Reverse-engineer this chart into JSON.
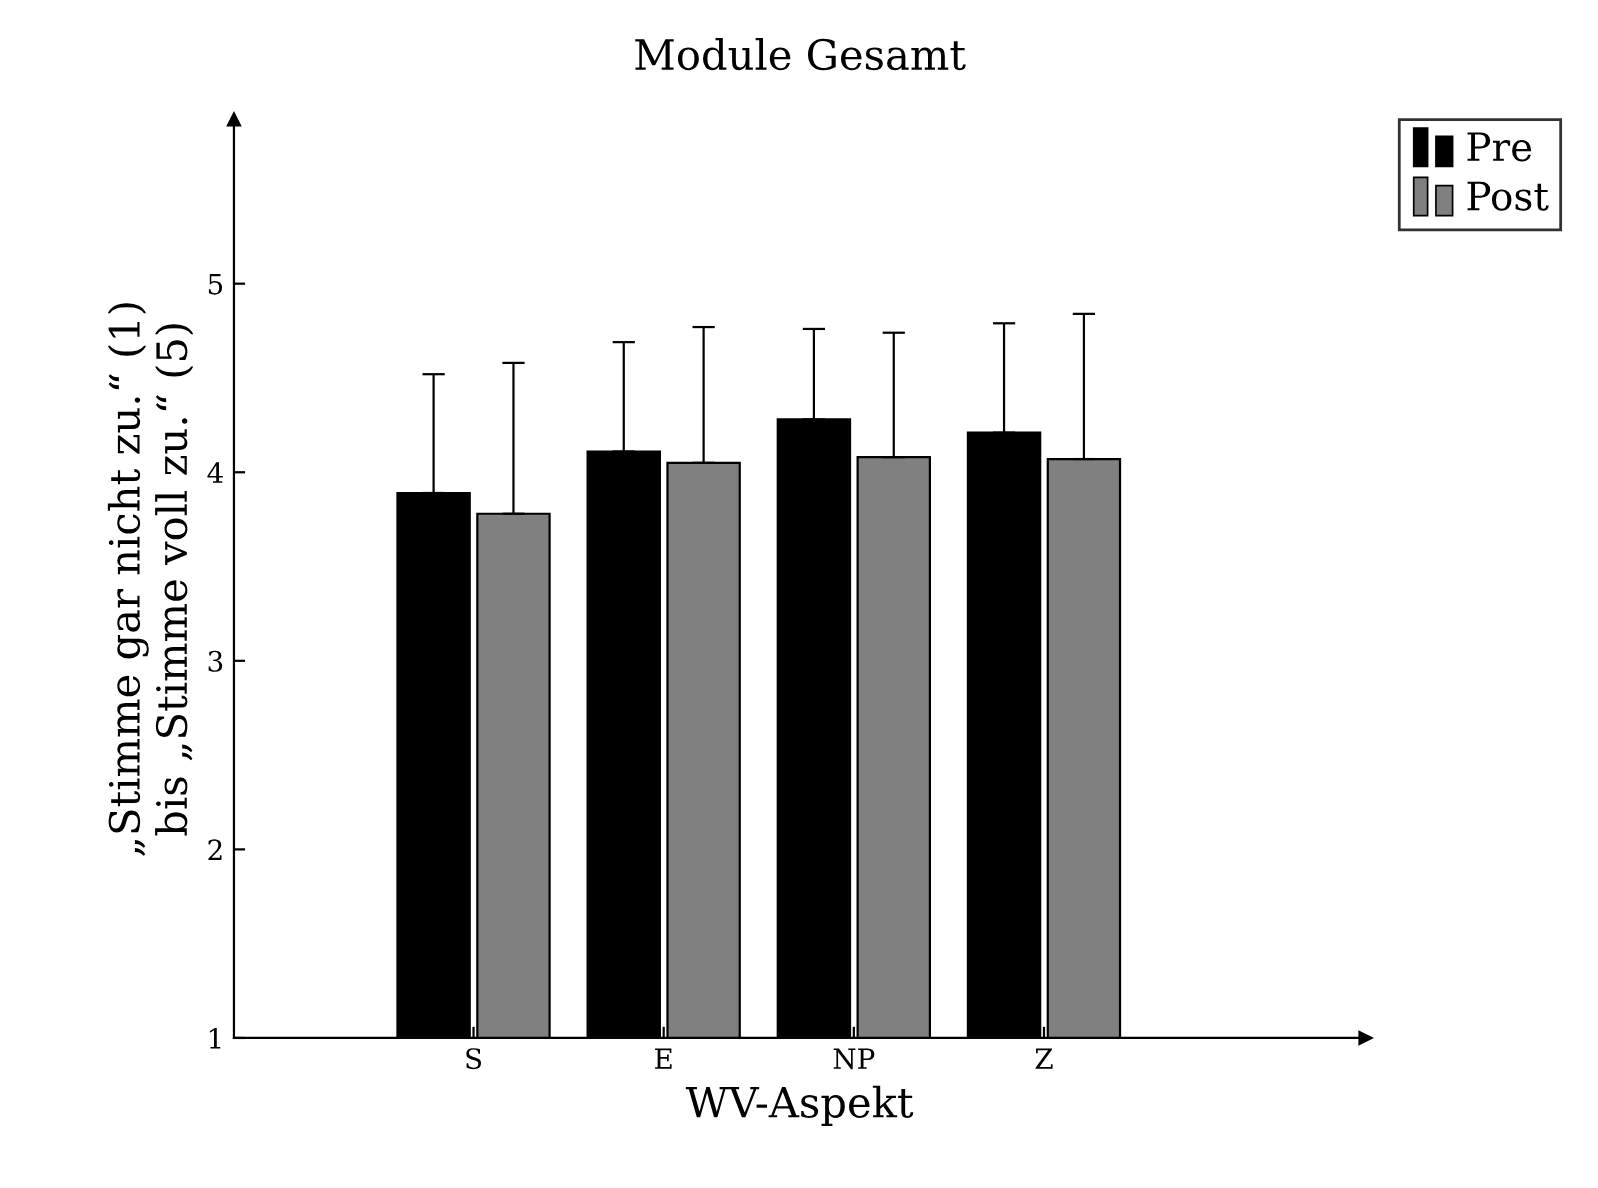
{
  "chart_data": {
    "type": "bar",
    "title": "Module Gesamt",
    "xlabel": "WV-Aspekt",
    "ylabel": "„Stimme gar nicht zu.“ (1)\nbis „Stimme voll zu.“ (5)",
    "categories": [
      "S",
      "E",
      "NP",
      "Z"
    ],
    "series": [
      {
        "name": "Pre",
        "color": "#000000",
        "values": [
          3.89,
          4.11,
          4.28,
          4.21
        ],
        "errors": [
          [
            3.89,
            4.52
          ],
          [
            4.11,
            4.69
          ],
          [
            4.28,
            4.76
          ],
          [
            4.21,
            4.79
          ]
        ]
      },
      {
        "name": "Post",
        "color": "#808080",
        "values": [
          3.78,
          4.05,
          4.08,
          4.07
        ],
        "errors": [
          [
            3.78,
            4.58
          ],
          [
            4.05,
            4.77
          ],
          [
            4.08,
            4.74
          ],
          [
            4.07,
            4.84
          ]
        ]
      }
    ],
    "ylim": [
      1,
      5.87
    ],
    "yticks": [
      1,
      2,
      3,
      4,
      5
    ],
    "grid": false,
    "legend": "top right"
  }
}
